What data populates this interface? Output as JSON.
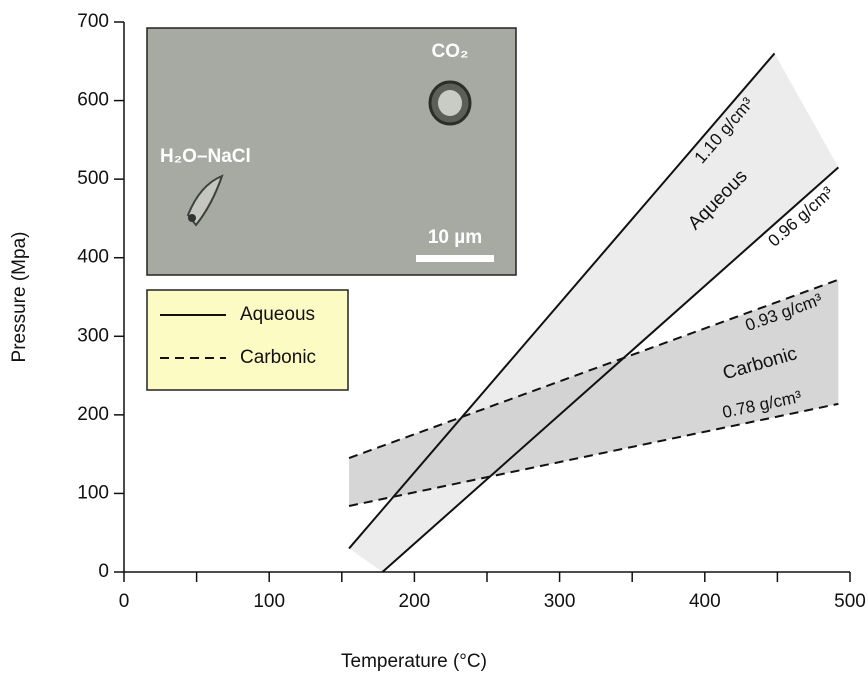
{
  "chart_data": {
    "type": "line",
    "x_label": "Temperature (°C)",
    "y_label": "Pressure (Mpa)",
    "xlim": [
      0,
      500
    ],
    "ylim": [
      0,
      700
    ],
    "xticks": [
      0,
      100,
      200,
      300,
      400,
      500
    ],
    "xminorticks": [
      50,
      150,
      250,
      350,
      450
    ],
    "yticks": [
      0,
      100,
      200,
      300,
      400,
      500,
      600,
      700
    ],
    "groups": [
      {
        "name": "Aqueous",
        "dash": "solid",
        "fill": "#e9e9e9",
        "series": [
          {
            "name": "1.10 g/cm³",
            "x": [
              155,
              448
            ],
            "values": [
              30,
              660
            ]
          },
          {
            "name": "0.96 g/cm³",
            "x": [
              178,
              492
            ],
            "values": [
              0,
              515
            ]
          }
        ]
      },
      {
        "name": "Carbonic",
        "dash": "dashed",
        "fill": "#cfcfcf",
        "series": [
          {
            "name": "0.93 g/cm³",
            "x": [
              155,
              492
            ],
            "values": [
              145,
              372
            ]
          },
          {
            "name": "0.78 g/cm³",
            "x": [
              155,
              492
            ],
            "values": [
              84,
              214
            ]
          }
        ]
      }
    ],
    "inset": {
      "labels": [
        "CO₂",
        "H₂O–NaCl",
        "10 µm"
      ]
    }
  }
}
